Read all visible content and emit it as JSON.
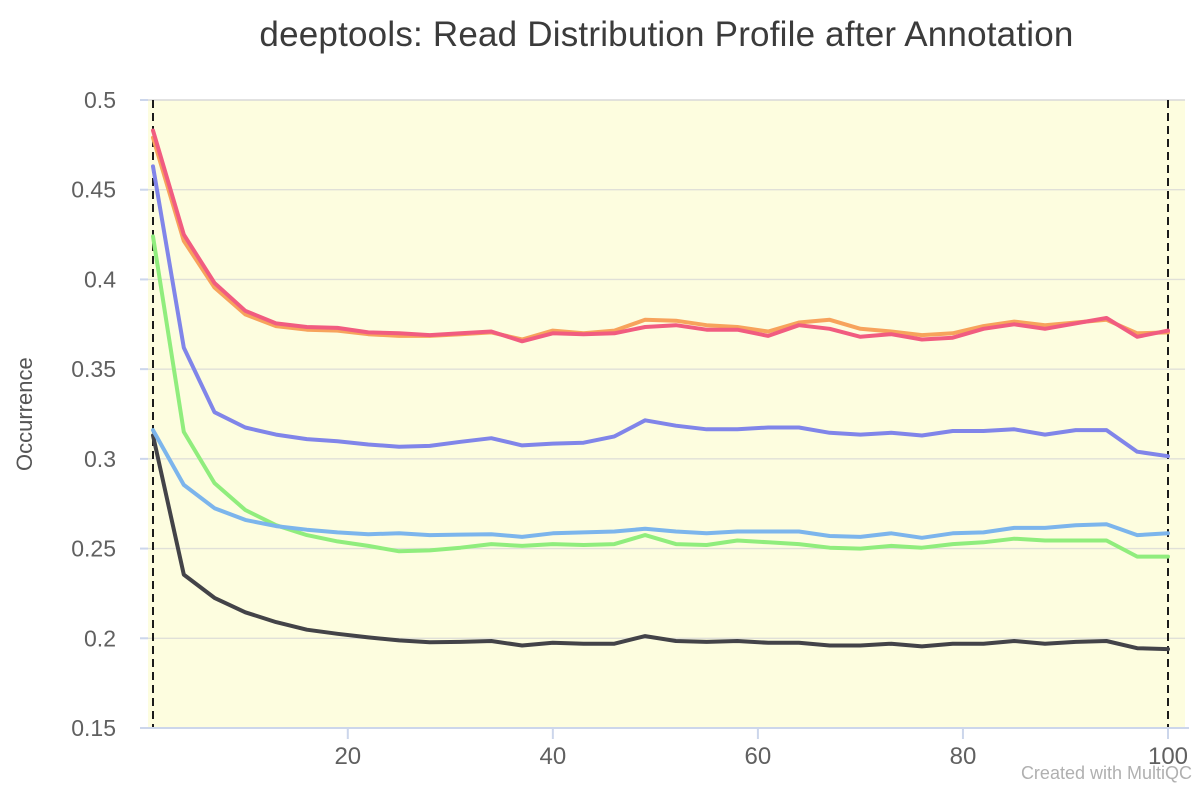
{
  "watermark": "Created with MultiQC",
  "chart_data": {
    "type": "line",
    "title": "deeptools: Read Distribution Profile after Annotation",
    "xlabel": "",
    "ylabel": "Occurrence",
    "ylim": [
      0.15,
      0.5
    ],
    "xlim": [
      1,
      100
    ],
    "grid": true,
    "legend_position": "none",
    "plot_bg": "#fdfddf",
    "gridline_color": "#e0e0d8",
    "top_gridline_color": "#d8d8d8",
    "axis_line_color": "#ccd6eb",
    "tick_label_color": "#606060",
    "boundary_line_color": "#1b1b1b",
    "boundary_x": [
      1,
      100
    ],
    "y_ticks": [
      {
        "value": 0.5,
        "label": "0.5"
      },
      {
        "value": 0.45,
        "label": "0.45"
      },
      {
        "value": 0.4,
        "label": "0.4"
      },
      {
        "value": 0.35,
        "label": "0.35"
      },
      {
        "value": 0.3,
        "label": "0.3"
      },
      {
        "value": 0.25,
        "label": "0.25"
      },
      {
        "value": 0.2,
        "label": "0.2"
      },
      {
        "value": 0.15,
        "label": "0.15"
      }
    ],
    "x_ticks": [
      {
        "value": 20,
        "label": "20"
      },
      {
        "value": 40,
        "label": "40"
      },
      {
        "value": 60,
        "label": "60"
      },
      {
        "value": 80,
        "label": "80"
      },
      {
        "value": 100,
        "label": "100"
      }
    ],
    "x": [
      1,
      4,
      7,
      10,
      13,
      16,
      19,
      22,
      25,
      28,
      31,
      34,
      37,
      40,
      43,
      46,
      49,
      52,
      55,
      58,
      61,
      64,
      67,
      70,
      73,
      76,
      79,
      82,
      85,
      88,
      91,
      94,
      97,
      100
    ],
    "series": [
      {
        "name": "orange",
        "color": "#f7a35c",
        "values": [
          0.479,
          0.4215,
          0.3955,
          0.3805,
          0.374,
          0.372,
          0.3715,
          0.3695,
          0.3685,
          0.3685,
          0.3695,
          0.3705,
          0.3665,
          0.3715,
          0.37,
          0.3715,
          0.3775,
          0.377,
          0.3745,
          0.3735,
          0.371,
          0.376,
          0.3775,
          0.3725,
          0.371,
          0.369,
          0.37,
          0.374,
          0.3765,
          0.3745,
          0.376,
          0.3775,
          0.37,
          0.3705
        ]
      },
      {
        "name": "red",
        "color": "#f15c80",
        "values": [
          0.483,
          0.425,
          0.398,
          0.3825,
          0.3755,
          0.3735,
          0.373,
          0.3705,
          0.37,
          0.369,
          0.37,
          0.371,
          0.3655,
          0.37,
          0.3695,
          0.37,
          0.3735,
          0.3745,
          0.372,
          0.372,
          0.3685,
          0.3745,
          0.3725,
          0.368,
          0.3695,
          0.3665,
          0.3675,
          0.3725,
          0.375,
          0.3725,
          0.3755,
          0.3785,
          0.368,
          0.3715
        ]
      },
      {
        "name": "black",
        "color": "#434348",
        "values": [
          0.313,
          0.2355,
          0.2225,
          0.2145,
          0.209,
          0.2048,
          0.2025,
          0.2005,
          0.1988,
          0.1978,
          0.198,
          0.1985,
          0.196,
          0.1975,
          0.197,
          0.197,
          0.2012,
          0.1985,
          0.198,
          0.1985,
          0.1975,
          0.1975,
          0.196,
          0.196,
          0.197,
          0.1955,
          0.197,
          0.197,
          0.1985,
          0.197,
          0.198,
          0.1985,
          0.1945,
          0.194
        ]
      },
      {
        "name": "green",
        "color": "#90ed7d",
        "values": [
          0.424,
          0.315,
          0.2865,
          0.2715,
          0.263,
          0.2575,
          0.254,
          0.2515,
          0.2485,
          0.249,
          0.2505,
          0.2525,
          0.2515,
          0.2525,
          0.252,
          0.2525,
          0.2575,
          0.2525,
          0.252,
          0.2545,
          0.2535,
          0.2525,
          0.2505,
          0.25,
          0.2515,
          0.2505,
          0.2525,
          0.2535,
          0.2555,
          0.2545,
          0.2545,
          0.2545,
          0.2455,
          0.2455
        ]
      },
      {
        "name": "blue",
        "color": "#7cb5ec",
        "values": [
          0.316,
          0.2855,
          0.2725,
          0.266,
          0.2625,
          0.2605,
          0.259,
          0.258,
          0.2585,
          0.2575,
          0.2578,
          0.258,
          0.2565,
          0.2585,
          0.259,
          0.2595,
          0.261,
          0.2595,
          0.2585,
          0.2595,
          0.2595,
          0.2595,
          0.257,
          0.2565,
          0.2585,
          0.256,
          0.2585,
          0.259,
          0.2615,
          0.2615,
          0.263,
          0.2635,
          0.2575,
          0.2585
        ]
      },
      {
        "name": "purple",
        "color": "#8085e9",
        "values": [
          0.463,
          0.362,
          0.326,
          0.3175,
          0.3135,
          0.311,
          0.3098,
          0.308,
          0.3068,
          0.3072,
          0.3095,
          0.3115,
          0.3075,
          0.3085,
          0.309,
          0.3125,
          0.3215,
          0.3185,
          0.3165,
          0.3165,
          0.3175,
          0.3175,
          0.3145,
          0.3135,
          0.3145,
          0.313,
          0.3155,
          0.3155,
          0.3165,
          0.3135,
          0.316,
          0.316,
          0.304,
          0.3015
        ]
      }
    ]
  }
}
